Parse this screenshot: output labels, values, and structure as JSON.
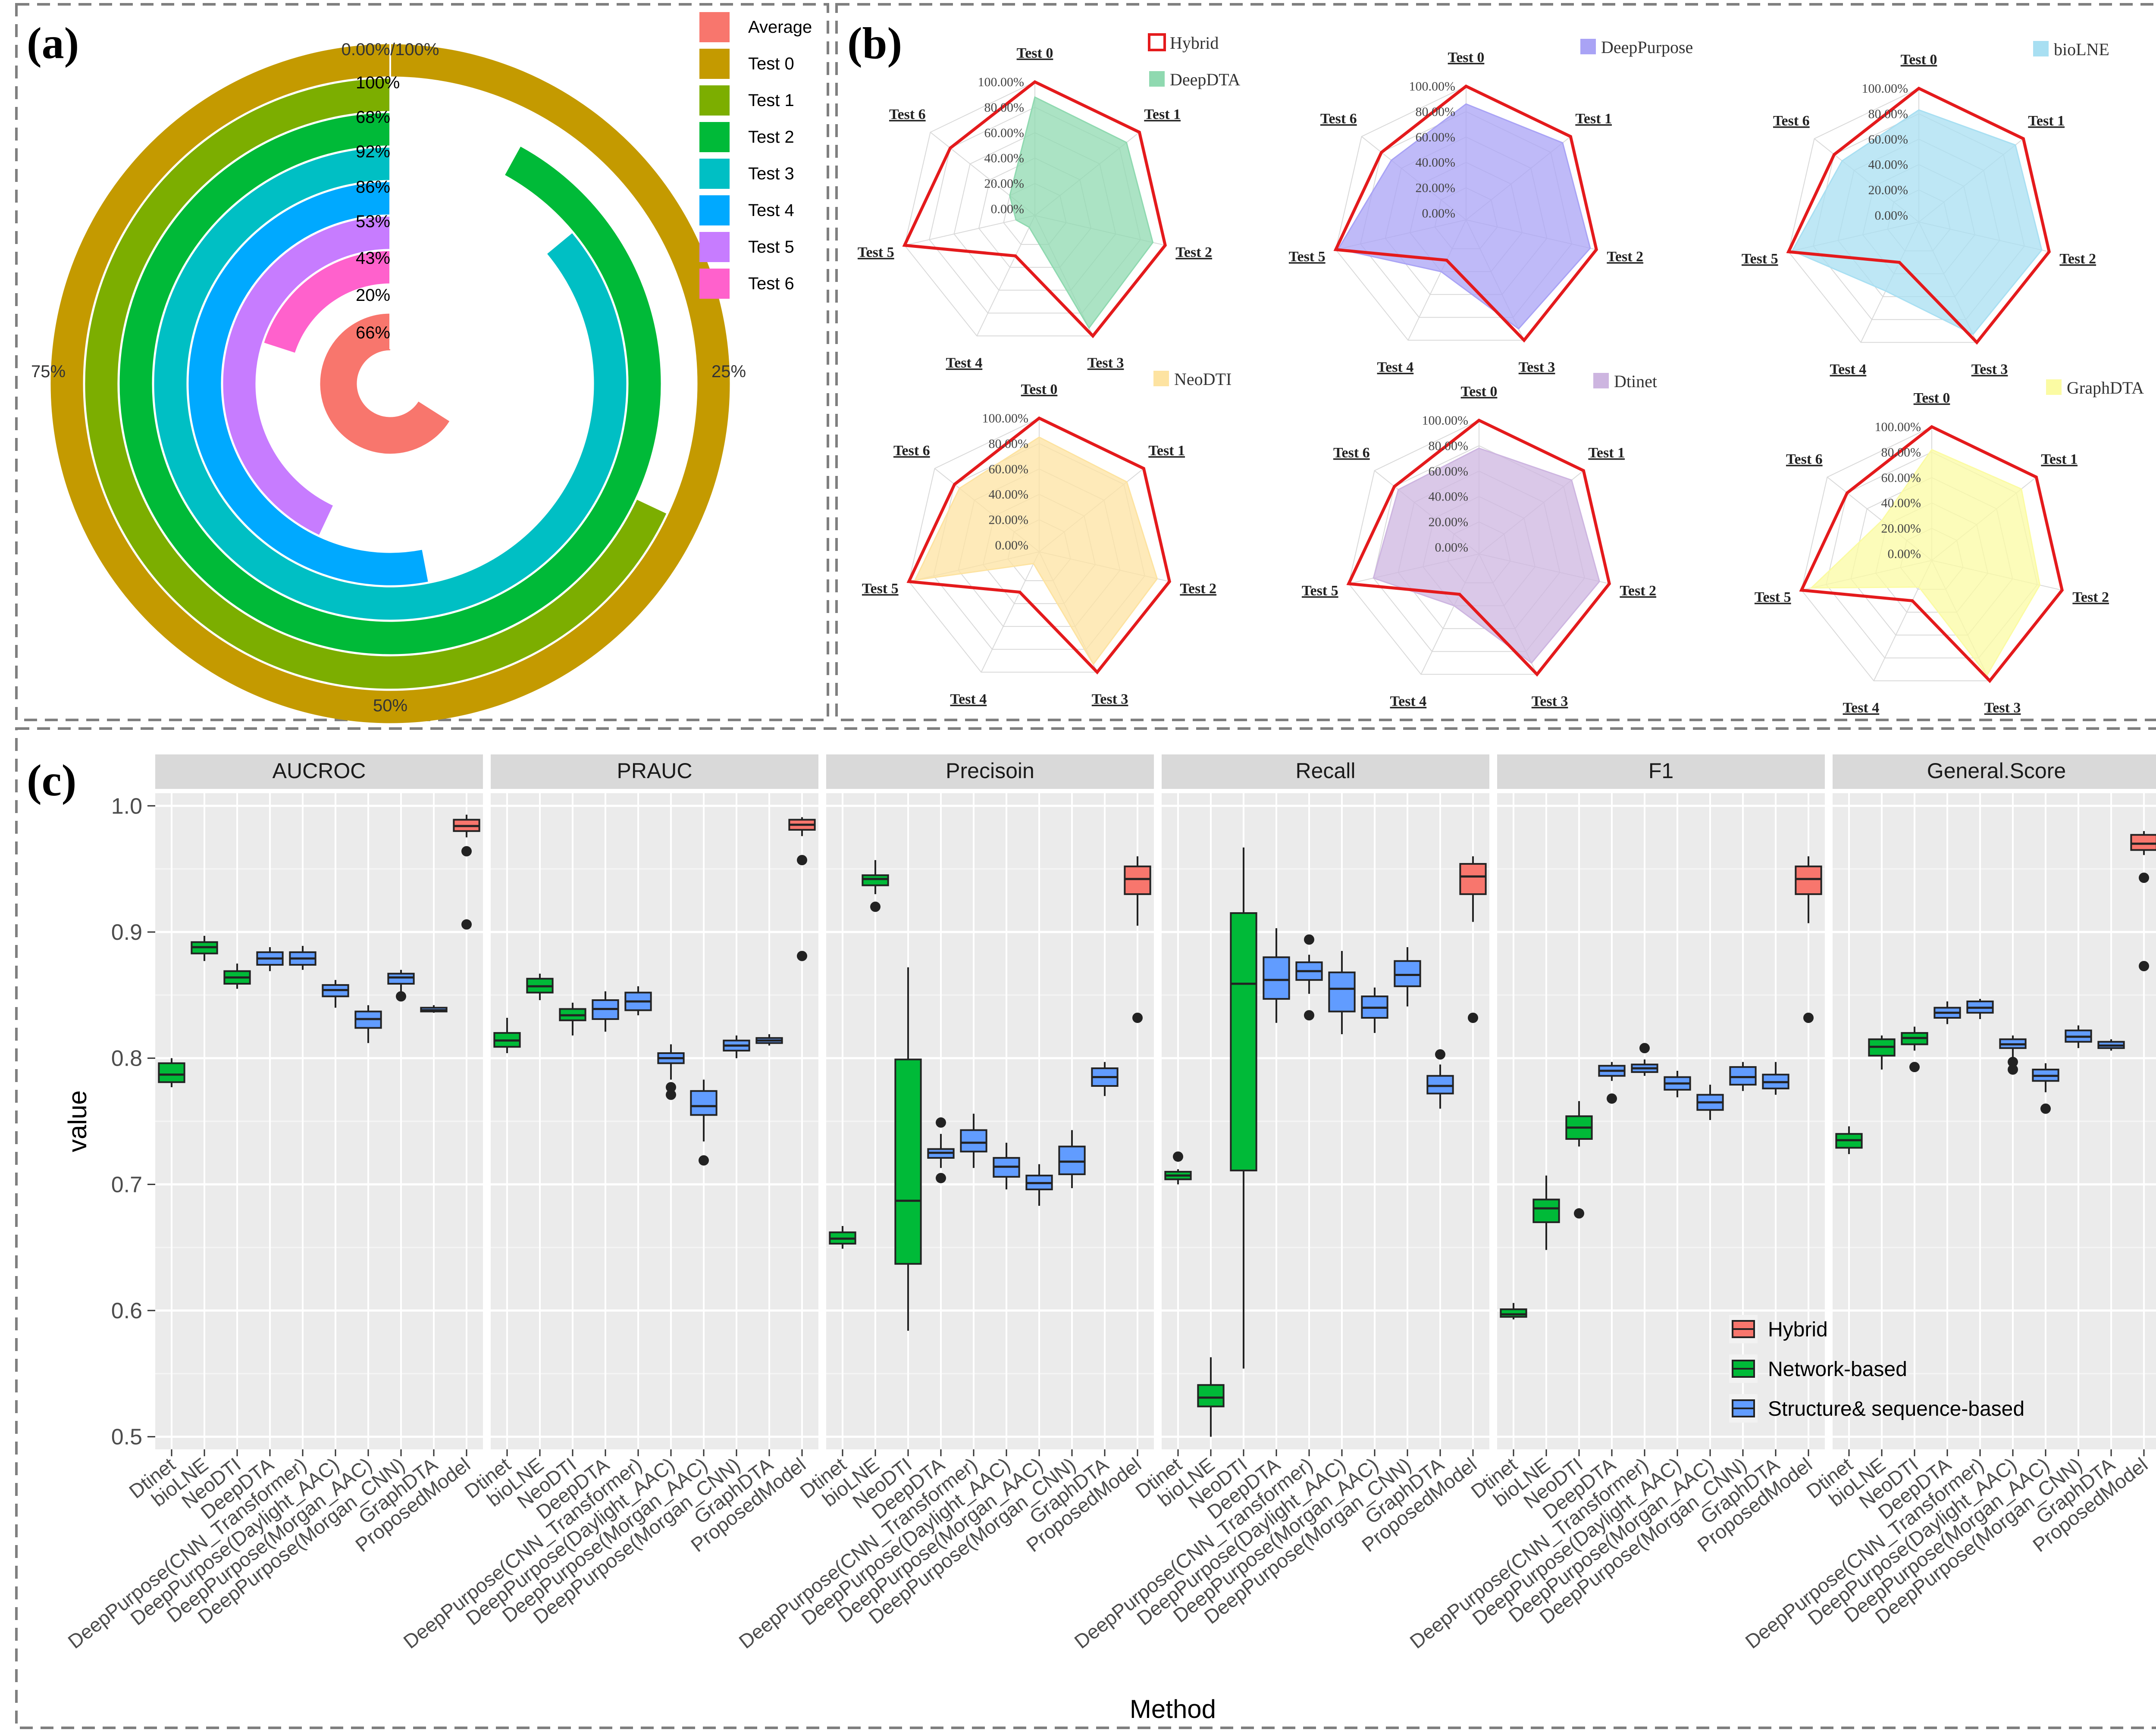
{
  "panels": {
    "a": "(a)",
    "b": "(b)",
    "c": "(c)"
  },
  "chart_data": [
    {
      "type": "radial-bar",
      "panel": "(a)",
      "circle_labels": {
        "top": "0.00%/100%",
        "right": "25%",
        "bottom": "50%",
        "left": "75%"
      },
      "series": [
        {
          "name": "Average",
          "value_label": "66%",
          "value": 66,
          "color": "#F8766D"
        },
        {
          "name": "Test 0",
          "value_label": "100%",
          "value": 100,
          "color": "#C49A00"
        },
        {
          "name": "Test 1",
          "value_label": "68%",
          "value": 68,
          "color": "#7CAE00"
        },
        {
          "name": "Test 2",
          "value_label": "92%",
          "value": 92,
          "color": "#00BA38"
        },
        {
          "name": "Test 3",
          "value_label": "86%",
          "value": 86,
          "color": "#00BFC4"
        },
        {
          "name": "Test 4",
          "value_label": "53%",
          "value": 53,
          "color": "#00A9FF"
        },
        {
          "name": "Test 5",
          "value_label": "43%",
          "value": 43,
          "color": "#C77CFF"
        },
        {
          "name": "Test 6",
          "value_label": "20%",
          "value": 20,
          "color": "#FF61CC"
        }
      ]
    },
    {
      "type": "radar",
      "panel": "(b)",
      "axes": [
        "Test 0",
        "Test 1",
        "Test 2",
        "Test 3",
        "Test 4",
        "Test 5",
        "Test 6"
      ],
      "rlabels": [
        "100.00%",
        "80.00%",
        "60.00%",
        "40.00%",
        "20.00%",
        "0.00%"
      ],
      "reference": {
        "name": "Hybrid",
        "color": "#E41A1C",
        "values": [
          100,
          100,
          100,
          100,
          30,
          100,
          80
        ]
      },
      "charts": [
        {
          "name": "DeepDTA",
          "color": "#8FD9B0",
          "values": [
            88,
            87,
            90,
            93,
            5,
            10,
            20
          ]
        },
        {
          "name": "DeepPurpose",
          "color": "#A9A3F5",
          "values": [
            86,
            92,
            95,
            90,
            40,
            98,
            70
          ]
        },
        {
          "name": "bioLNE",
          "color": "#A8DFF2",
          "values": [
            83,
            92,
            94,
            93,
            55,
            97,
            72
          ]
        },
        {
          "name": "NeoDTI",
          "color": "#FDE3A1",
          "values": [
            85,
            83,
            90,
            93,
            5,
            95,
            75
          ]
        },
        {
          "name": "Dtinet",
          "color": "#CDB5E0",
          "values": [
            78,
            88,
            92,
            90,
            40,
            80,
            76
          ]
        },
        {
          "name": "GraphDTA",
          "color": "#FBFBA3",
          "values": [
            82,
            85,
            82,
            95,
            18,
            92,
            45
          ]
        }
      ]
    },
    {
      "type": "boxplot",
      "panel": "(c)",
      "xlabel": "Method",
      "ylabel": "value",
      "ylim": [
        0.49,
        1.01
      ],
      "yticks": [
        "0.5",
        "0.6",
        "0.7",
        "0.8",
        "0.9",
        "1.0"
      ],
      "methods": [
        "Dtinet",
        "bioLNE",
        "NeoDTI",
        "DeepDTA",
        "DeepPurpose(CNN_Transformer)",
        "DeepPurpose(Daylight_AAC)",
        "DeepPurpose(Morgan_AAC)",
        "DeepPurpose(Morgan_CNN)",
        "GraphDTA",
        "ProposedModel"
      ],
      "groups": [
        "Network-based",
        "Network-based",
        "Network-based",
        "Structure& sequence-based",
        "Structure& sequence-based",
        "Structure& sequence-based",
        "Structure& sequence-based",
        "Structure& sequence-based",
        "Structure& sequence-based",
        "Hybrid"
      ],
      "legend": [
        {
          "name": "Hybrid",
          "color": "#F8766D"
        },
        {
          "name": "Network-based",
          "color": "#00BA38"
        },
        {
          "name": "Structure& sequence-based",
          "color": "#619CFF"
        }
      ],
      "facets": [
        {
          "name": "AUCROC",
          "boxes": [
            [
              0.777,
              0.781,
              0.787,
              0.796,
              0.8,
              []
            ],
            [
              0.877,
              0.883,
              0.888,
              0.892,
              0.897,
              []
            ],
            [
              0.855,
              0.859,
              0.864,
              0.869,
              0.875,
              []
            ],
            [
              0.869,
              0.874,
              0.879,
              0.884,
              0.888,
              []
            ],
            [
              0.87,
              0.874,
              0.879,
              0.884,
              0.889,
              []
            ],
            [
              0.84,
              0.849,
              0.854,
              0.858,
              0.862,
              []
            ],
            [
              0.812,
              0.824,
              0.831,
              0.837,
              0.842,
              []
            ],
            [
              0.853,
              0.859,
              0.864,
              0.867,
              0.87,
              [
                0.849
              ]
            ],
            [
              0.836,
              0.837,
              0.838,
              0.84,
              0.842,
              []
            ],
            [
              0.975,
              0.98,
              0.984,
              0.989,
              0.993,
              [
                0.964,
                0.906
              ]
            ]
          ]
        },
        {
          "name": "PRAUC",
          "boxes": [
            [
              0.804,
              0.809,
              0.814,
              0.82,
              0.832,
              []
            ],
            [
              0.846,
              0.852,
              0.857,
              0.863,
              0.867,
              []
            ],
            [
              0.818,
              0.83,
              0.834,
              0.839,
              0.844,
              []
            ],
            [
              0.821,
              0.831,
              0.839,
              0.846,
              0.853,
              []
            ],
            [
              0.834,
              0.838,
              0.845,
              0.852,
              0.857,
              []
            ],
            [
              0.783,
              0.796,
              0.8,
              0.804,
              0.811,
              [
                0.777,
                0.771
              ]
            ],
            [
              0.734,
              0.755,
              0.762,
              0.774,
              0.783,
              [
                0.719
              ]
            ],
            [
              0.8,
              0.806,
              0.81,
              0.814,
              0.818,
              []
            ],
            [
              0.81,
              0.812,
              0.814,
              0.816,
              0.819,
              []
            ],
            [
              0.976,
              0.981,
              0.985,
              0.989,
              0.991,
              [
                0.957,
                0.881
              ]
            ]
          ]
        },
        {
          "name": "Precisoin",
          "boxes": [
            [
              0.649,
              0.653,
              0.657,
              0.662,
              0.667,
              []
            ],
            [
              0.93,
              0.937,
              0.942,
              0.945,
              0.957,
              [
                0.92
              ]
            ],
            [
              0.584,
              0.637,
              0.687,
              0.799,
              0.872,
              []
            ],
            [
              0.713,
              0.721,
              0.725,
              0.728,
              0.74,
              [
                0.749,
                0.705
              ]
            ],
            [
              0.713,
              0.726,
              0.733,
              0.743,
              0.756,
              []
            ],
            [
              0.696,
              0.706,
              0.714,
              0.721,
              0.733,
              []
            ],
            [
              0.683,
              0.696,
              0.701,
              0.707,
              0.716,
              []
            ],
            [
              0.697,
              0.708,
              0.718,
              0.73,
              0.743,
              []
            ],
            [
              0.77,
              0.778,
              0.785,
              0.792,
              0.797,
              []
            ],
            [
              0.905,
              0.93,
              0.942,
              0.952,
              0.96,
              [
                0.832
              ]
            ]
          ]
        },
        {
          "name": "Recall",
          "boxes": [
            [
              0.7,
              0.704,
              0.707,
              0.71,
              0.712,
              [
                0.722
              ]
            ],
            [
              0.5,
              0.524,
              0.531,
              0.541,
              0.563,
              []
            ],
            [
              0.554,
              0.711,
              0.859,
              0.915,
              0.967,
              []
            ],
            [
              0.828,
              0.847,
              0.862,
              0.88,
              0.903,
              []
            ],
            [
              0.851,
              0.862,
              0.869,
              0.876,
              0.882,
              [
                0.894,
                0.834
              ]
            ],
            [
              0.819,
              0.837,
              0.855,
              0.868,
              0.885,
              []
            ],
            [
              0.82,
              0.832,
              0.84,
              0.849,
              0.856,
              []
            ],
            [
              0.841,
              0.857,
              0.866,
              0.877,
              0.888,
              []
            ],
            [
              0.76,
              0.772,
              0.778,
              0.786,
              0.795,
              [
                0.803
              ]
            ],
            [
              0.908,
              0.93,
              0.944,
              0.954,
              0.96,
              [
                0.832
              ]
            ]
          ]
        },
        {
          "name": "F1",
          "boxes": [
            [
              0.593,
              0.595,
              0.597,
              0.601,
              0.606,
              []
            ],
            [
              0.648,
              0.67,
              0.681,
              0.688,
              0.707,
              []
            ],
            [
              0.73,
              0.736,
              0.745,
              0.754,
              0.766,
              [
                0.677
              ]
            ],
            [
              0.782,
              0.786,
              0.79,
              0.794,
              0.797,
              [
                0.768
              ]
            ],
            [
              0.786,
              0.789,
              0.792,
              0.795,
              0.799,
              [
                0.808
              ]
            ],
            [
              0.769,
              0.775,
              0.78,
              0.785,
              0.79,
              []
            ],
            [
              0.751,
              0.759,
              0.765,
              0.771,
              0.779,
              []
            ],
            [
              0.774,
              0.779,
              0.785,
              0.793,
              0.797,
              []
            ],
            [
              0.771,
              0.776,
              0.781,
              0.787,
              0.797,
              []
            ],
            [
              0.907,
              0.93,
              0.942,
              0.952,
              0.96,
              [
                0.832
              ]
            ]
          ]
        },
        {
          "name": "General.Score",
          "boxes": [
            [
              0.724,
              0.729,
              0.735,
              0.74,
              0.746,
              []
            ],
            [
              0.791,
              0.802,
              0.809,
              0.815,
              0.818,
              []
            ],
            [
              0.806,
              0.811,
              0.816,
              0.82,
              0.825,
              [
                0.793
              ]
            ],
            [
              0.827,
              0.832,
              0.836,
              0.84,
              0.845,
              []
            ],
            [
              0.831,
              0.836,
              0.84,
              0.845,
              0.847,
              []
            ],
            [
              0.801,
              0.808,
              0.811,
              0.815,
              0.818,
              [
                0.797,
                0.791
              ]
            ],
            [
              0.773,
              0.782,
              0.786,
              0.791,
              0.796,
              [
                0.76
              ]
            ],
            [
              0.808,
              0.813,
              0.817,
              0.822,
              0.826,
              []
            ],
            [
              0.806,
              0.808,
              0.81,
              0.813,
              0.815,
              []
            ],
            [
              0.961,
              0.965,
              0.97,
              0.977,
              0.98,
              [
                0.943,
                0.873
              ]
            ]
          ]
        }
      ]
    }
  ]
}
